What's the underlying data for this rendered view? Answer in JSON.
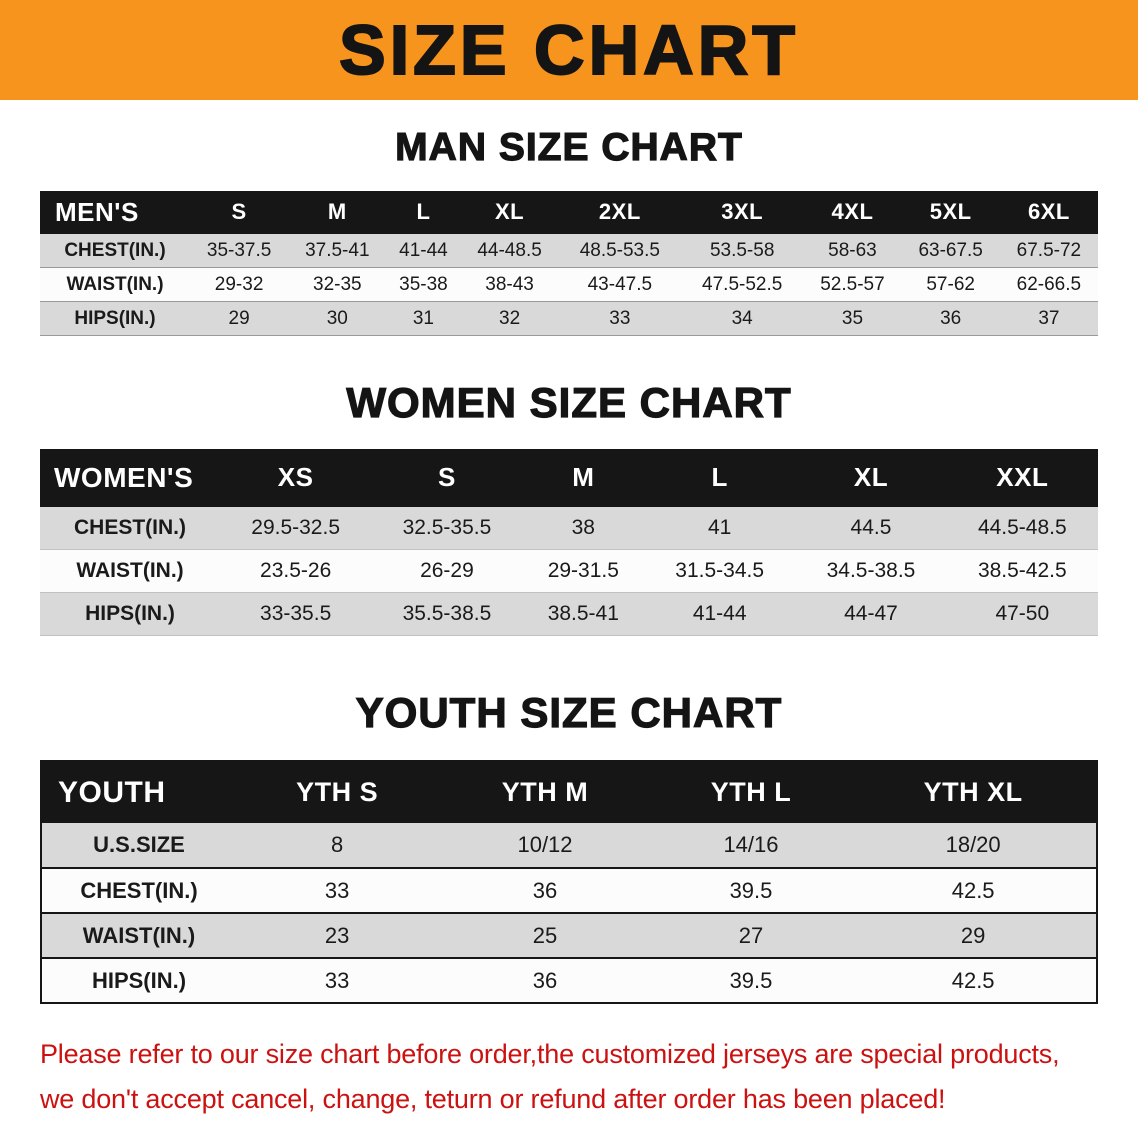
{
  "banner": {
    "title": "SIZE CHART",
    "bg_color": "#f7941d",
    "text_color": "#141414"
  },
  "sections": [
    {
      "heading": "MAN SIZE CHART",
      "table": {
        "header": [
          "MEN'S",
          "S",
          "M",
          "L",
          "XL",
          "2XL",
          "3XL",
          "4XL",
          "5XL",
          "6XL"
        ],
        "rows": [
          [
            "CHEST(IN.)",
            "35-37.5",
            "37.5-41",
            "41-44",
            "44-48.5",
            "48.5-53.5",
            "53.5-58",
            "58-63",
            "63-67.5",
            "67.5-72"
          ],
          [
            "WAIST(IN.)",
            "29-32",
            "32-35",
            "35-38",
            "38-43",
            "43-47.5",
            "47.5-52.5",
            "52.5-57",
            "57-62",
            "62-66.5"
          ],
          [
            "HIPS(IN.)",
            "29",
            "30",
            "31",
            "32",
            "33",
            "34",
            "35",
            "36",
            "37"
          ]
        ]
      }
    },
    {
      "heading": "WOMEN SIZE CHART",
      "table": {
        "header": [
          "WOMEN'S",
          "XS",
          "S",
          "M",
          "L",
          "XL",
          "XXL"
        ],
        "rows": [
          [
            "CHEST(IN.)",
            "29.5-32.5",
            "32.5-35.5",
            "38",
            "41",
            "44.5",
            "44.5-48.5"
          ],
          [
            "WAIST(IN.)",
            "23.5-26",
            "26-29",
            "29-31.5",
            "31.5-34.5",
            "34.5-38.5",
            "38.5-42.5"
          ],
          [
            "HIPS(IN.)",
            "33-35.5",
            "35.5-38.5",
            "38.5-41",
            "41-44",
            "44-47",
            "47-50"
          ]
        ]
      }
    },
    {
      "heading": "YOUTH SIZE CHART",
      "table": {
        "header": [
          "YOUTH",
          "YTH S",
          "YTH M",
          "YTH L",
          "YTH XL"
        ],
        "rows": [
          [
            "U.S.SIZE",
            "8",
            "10/12",
            "14/16",
            "18/20"
          ],
          [
            "CHEST(IN.)",
            "33",
            "36",
            "39.5",
            "42.5"
          ],
          [
            "WAIST(IN.)",
            "23",
            "25",
            "27",
            "29"
          ],
          [
            "HIPS(IN.)",
            "33",
            "36",
            "39.5",
            "42.5"
          ]
        ]
      }
    }
  ],
  "footer": {
    "line1": "Please refer to our size chart before order,the customized jerseys are special products,",
    "line2": "we don't accept cancel, change, teturn or refund after order has been placed!",
    "text_color": "#cc1111"
  }
}
